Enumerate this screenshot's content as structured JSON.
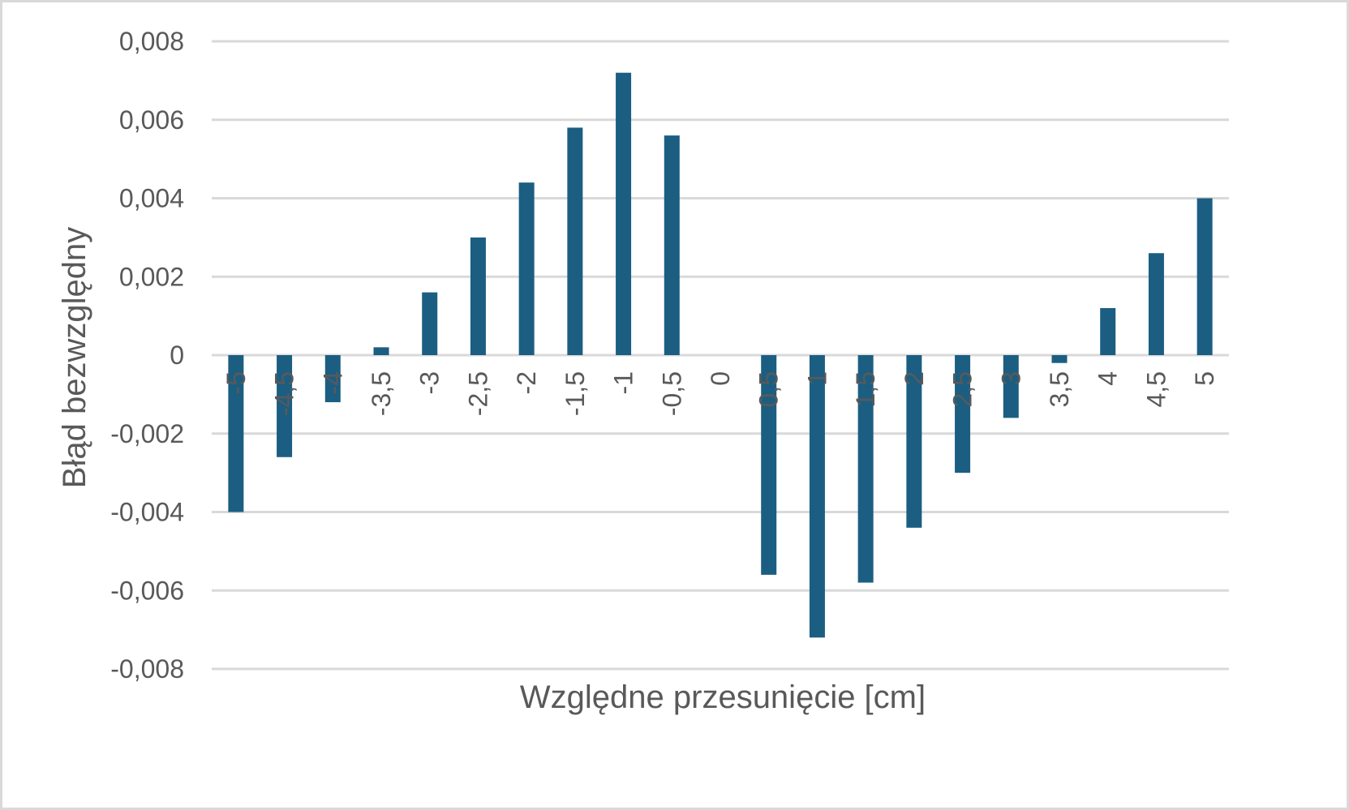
{
  "chart_data": {
    "type": "bar",
    "title": "",
    "xlabel": "Względne przesunięcie [cm]",
    "ylabel": "Błąd bezwzględny",
    "categories": [
      "-5",
      "-4,5",
      "-4",
      "-3,5",
      "-3",
      "-2,5",
      "-2",
      "-1,5",
      "-1",
      "-0,5",
      "0",
      "0,5",
      "1",
      "1,5",
      "2",
      "2,5",
      "3",
      "3,5",
      "4",
      "4,5",
      "5"
    ],
    "values": [
      -0.004,
      -0.0026,
      -0.0012,
      0.0002,
      0.0016,
      0.003,
      0.0044,
      0.0058,
      0.0072,
      0.0056,
      0,
      -0.0056,
      -0.0072,
      -0.0058,
      -0.0044,
      -0.003,
      -0.0016,
      -0.0002,
      0.0012,
      0.0026,
      0.004
    ],
    "ylim": [
      -0.008,
      0.008
    ],
    "yticks": [
      0.008,
      0.006,
      0.004,
      0.002,
      0,
      -0.002,
      -0.004,
      -0.006,
      -0.008
    ],
    "ytick_labels": [
      "0,008",
      "0,006",
      "0,004",
      "0,002",
      "0",
      "-0,002",
      "-0,004",
      "-0,006",
      "-0,008"
    ],
    "grid": true,
    "legend": "none",
    "colors": {
      "bar": "#1b5e82",
      "grid": "#d9d9d9",
      "text": "#595959"
    }
  }
}
